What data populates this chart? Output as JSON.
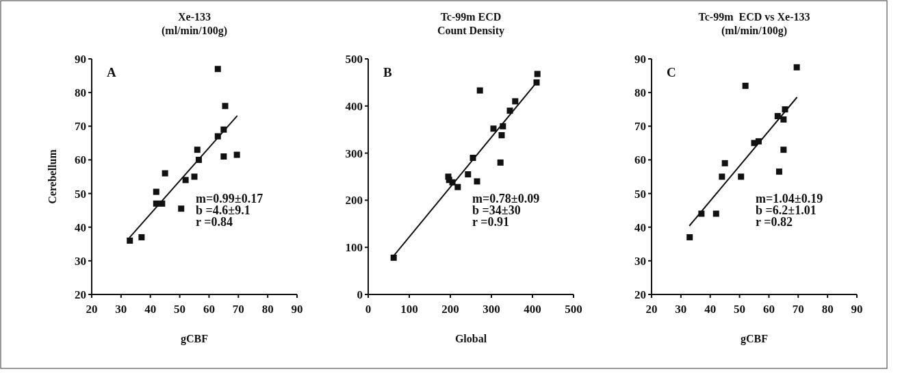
{
  "chart_data": [
    {
      "type": "scatter",
      "title": "Xe-133",
      "subtitle": "(ml/min/100g)",
      "xlabel": "gCBF",
      "ylabel": "Cerebellum",
      "xlim": [
        20,
        90
      ],
      "ylim": [
        20,
        90
      ],
      "xticks": [
        20,
        30,
        40,
        50,
        60,
        70,
        80,
        90
      ],
      "yticks": [
        20,
        30,
        40,
        50,
        60,
        70,
        80,
        90
      ],
      "grid": false,
      "annotations": [
        "A",
        "m=0.99±0.17",
        "b =4.6±9.1",
        "r =0.84"
      ],
      "series": [
        {
          "marker": "square",
          "color": "#111111",
          "x": [
            33,
            37,
            42,
            42,
            44,
            45,
            50.5,
            52,
            55,
            56,
            56.5,
            63,
            63,
            65,
            65.5,
            65,
            69.5
          ],
          "values": [
            36,
            37,
            50.5,
            47,
            47,
            56,
            45.5,
            54,
            55,
            63,
            60,
            87,
            67,
            69,
            76,
            61,
            61.5
          ]
        },
        {
          "type": "line",
          "marker": "none",
          "color": "#111111",
          "x": [
            33,
            69.5
          ],
          "values": [
            37,
            73
          ]
        }
      ]
    },
    {
      "type": "scatter",
      "title": "Tc-99m ECD",
      "subtitle": "Count Density",
      "xlabel": "Global",
      "xlim": [
        0,
        500
      ],
      "ylim": [
        0,
        500
      ],
      "xticks": [
        0,
        100,
        200,
        300,
        400,
        500
      ],
      "yticks": [
        0,
        100,
        200,
        300,
        400,
        500
      ],
      "grid": false,
      "annotations": [
        "B",
        "m=0.78±0.09",
        "b =34±30",
        "r =0.91"
      ],
      "series": [
        {
          "marker": "square",
          "color": "#111111",
          "x": [
            62,
            195,
            197,
            205,
            218,
            243,
            255,
            265,
            272,
            305,
            322,
            325,
            328,
            345,
            358,
            410,
            412
          ],
          "values": [
            78,
            250,
            243,
            238,
            228,
            255,
            290,
            240,
            433,
            352,
            280,
            338,
            357,
            390,
            410,
            450,
            468
          ]
        },
        {
          "type": "line",
          "marker": "none",
          "color": "#111111",
          "x": [
            62,
            410
          ],
          "values": [
            82,
            450
          ]
        }
      ]
    },
    {
      "type": "scatter",
      "title": "Tc-99m  ECD vs Xe-133",
      "subtitle": "(ml/min/100g)",
      "xlabel": "gCBF",
      "xlim": [
        20,
        90
      ],
      "ylim": [
        20,
        90
      ],
      "xticks": [
        20,
        30,
        40,
        50,
        60,
        70,
        80,
        90
      ],
      "yticks": [
        20,
        30,
        40,
        50,
        60,
        70,
        80,
        90
      ],
      "grid": false,
      "annotations": [
        "C",
        "m=1.04±0.19",
        "b =6.2±1.01",
        "r =0.82"
      ],
      "series": [
        {
          "marker": "square",
          "color": "#111111",
          "x": [
            33,
            37,
            42,
            44,
            45,
            50.5,
            52,
            55,
            56.5,
            63,
            63.5,
            65,
            65.5,
            65,
            69.5
          ],
          "values": [
            37,
            44,
            44,
            55,
            59,
            55,
            82,
            65,
            65.5,
            73,
            56.5,
            72,
            75,
            63,
            87.5
          ]
        },
        {
          "type": "line",
          "marker": "none",
          "color": "#111111",
          "x": [
            33,
            69.5
          ],
          "values": [
            40.5,
            78.5
          ]
        }
      ]
    }
  ]
}
